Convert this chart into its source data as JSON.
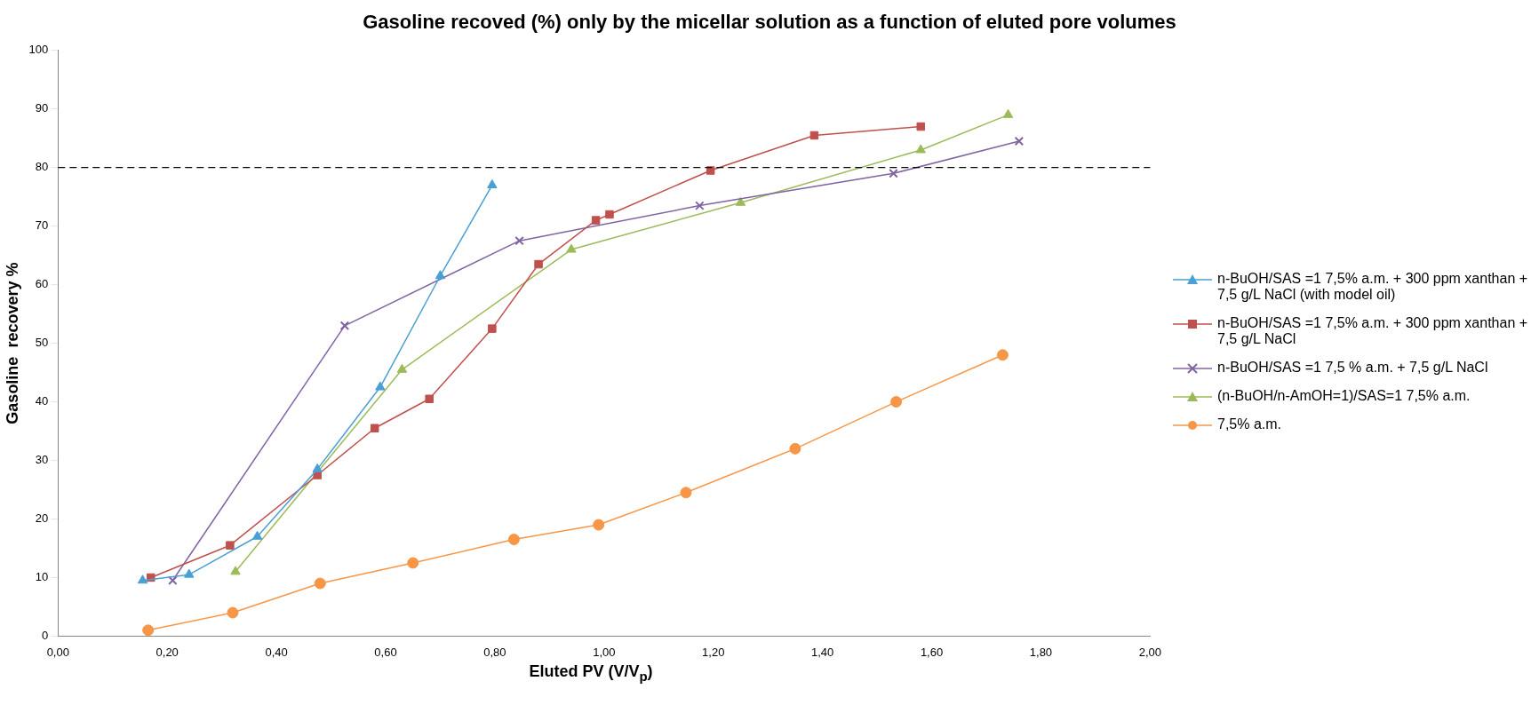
{
  "chart_data": {
    "type": "line",
    "title": "Gasoline recoved (%) only by the micellar solution as a function of eluted pore volumes",
    "xlabel": "Eluted PV (V/V$_{p}$)",
    "ylabel": "Gasoline  recovery %",
    "xlim": [
      0,
      2
    ],
    "xticks": [
      {
        "value": 0,
        "label": "0,00"
      },
      {
        "value": 0.2,
        "label": "0,20"
      },
      {
        "value": 0.4,
        "label": "0,40"
      },
      {
        "value": 0.6,
        "label": "0,60"
      },
      {
        "value": 0.8,
        "label": "0,80"
      },
      {
        "value": 1,
        "label": "1,00"
      },
      {
        "value": 1.2,
        "label": "1,20"
      },
      {
        "value": 1.4,
        "label": "1,40"
      },
      {
        "value": 1.6,
        "label": "1,60"
      },
      {
        "value": 1.8,
        "label": "1,80"
      },
      {
        "value": 2,
        "label": "2,00"
      }
    ],
    "ylim": [
      0,
      100
    ],
    "yticks": [
      0,
      10,
      20,
      30,
      40,
      50,
      60,
      70,
      80,
      90,
      100
    ],
    "grid": false,
    "legend": "right",
    "series": [
      {
        "name": "n-BuOH/SAS =1  7,5% a.m. + 300 ppm xanthan + 7,5 g/L NaCl (with model oil)",
        "color": "#4a9fd4",
        "marker": "triangle",
        "x": [
          0.155,
          0.24,
          0.365,
          0.475,
          0.59,
          0.7,
          0.795
        ],
        "values": [
          9.5,
          10.5,
          17,
          28.5,
          42.5,
          61.5,
          77
        ]
      },
      {
        "name": "n-BuOH/SAS =1  7,5% a.m. + 300 ppm xanthan + 7,5 g/L NaCl",
        "color": "#c0504d",
        "marker": "square",
        "x": [
          0.17,
          0.315,
          0.475,
          0.58,
          0.68,
          0.795,
          0.88,
          0.985,
          1.01,
          1.195,
          1.385,
          1.58
        ],
        "values": [
          10,
          15.5,
          27.5,
          35.5,
          40.5,
          52.5,
          63.5,
          71,
          72,
          79.5,
          85.5,
          87
        ]
      },
      {
        "name": "n-BuOH/SAS =1  7,5 % a.m. + 7,5 g/L NaCl",
        "color": "#8064a2",
        "marker": "cross",
        "x": [
          0.21,
          0.525,
          0.845,
          1.175,
          1.53,
          1.76
        ],
        "values": [
          9.5,
          53,
          67.5,
          73.5,
          79,
          84.5
        ]
      },
      {
        "name": "(n-BuOH/n-AmOH=1)/SAS=1  7,5% a.m.",
        "color": "#9bbb59",
        "marker": "triangle",
        "x": [
          0.325,
          0.63,
          0.94,
          1.25,
          1.58,
          1.74
        ],
        "values": [
          11,
          45.5,
          66,
          74,
          83,
          89
        ]
      },
      {
        "name": "7,5% a.m.",
        "color": "#f79646",
        "marker": "circle",
        "x": [
          0.165,
          0.32,
          0.48,
          0.65,
          0.835,
          0.99,
          1.15,
          1.35,
          1.535,
          1.73
        ],
        "values": [
          1,
          4,
          9,
          12.5,
          16.5,
          19,
          24.5,
          32,
          40,
          48
        ]
      }
    ],
    "ref_lines": [
      {
        "axis": "y",
        "value": 80,
        "color": "#000000",
        "line_style": "dashed"
      }
    ]
  }
}
